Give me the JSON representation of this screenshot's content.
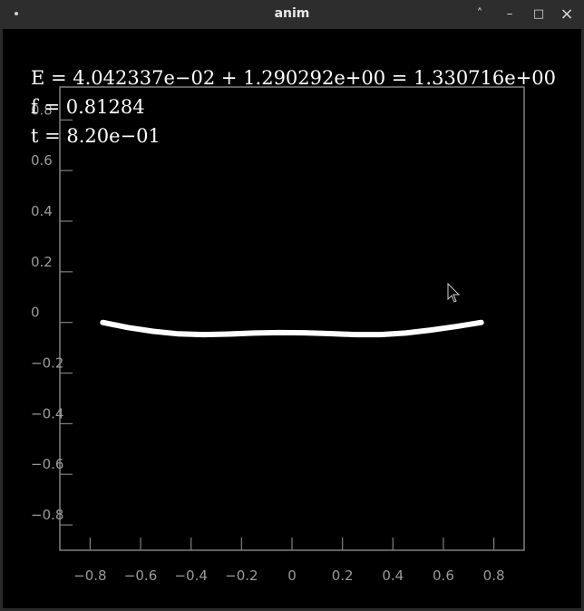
{
  "window": {
    "title": "anim",
    "menu_icon": "dot-menu-icon",
    "controls": {
      "maximize_up": "˄",
      "minimize": "–",
      "restore": "□",
      "close": "×"
    }
  },
  "overlay": {
    "energy_line": "E = 4.042337e−02 + 1.290292e+00 = 1.330716e+00",
    "f_line": "f = 0.81284",
    "t_line": "t = 8.20e−01"
  },
  "chart_data": {
    "type": "line",
    "x_ticks": [
      "−0.8",
      "−0.6",
      "−0.4",
      "−0.2",
      "0",
      "0.2",
      "0.4",
      "0.6",
      "0.8"
    ],
    "y_ticks": [
      "0.8",
      "0.6",
      "0.4",
      "0.2",
      "0",
      "−0.2",
      "−0.4",
      "−0.6",
      "−0.8"
    ],
    "xlim": [
      -0.92,
      0.92
    ],
    "ylim": [
      -0.9,
      0.93
    ],
    "series": [
      {
        "x": [
          -0.75,
          -0.65,
          -0.55,
          -0.45,
          -0.35,
          -0.25,
          -0.15,
          -0.05,
          0.05,
          0.15,
          0.25,
          0.35,
          0.45,
          0.55,
          0.65,
          0.75
        ],
        "y": [
          0.0,
          -0.02,
          -0.035,
          -0.045,
          -0.048,
          -0.046,
          -0.042,
          -0.04,
          -0.041,
          -0.044,
          -0.048,
          -0.048,
          -0.042,
          -0.03,
          -0.016,
          0.0
        ]
      }
    ],
    "colors": {
      "curve": "#ffffff",
      "axes": "#808080",
      "labels": "#9a9a9a",
      "background": "#000000"
    }
  }
}
